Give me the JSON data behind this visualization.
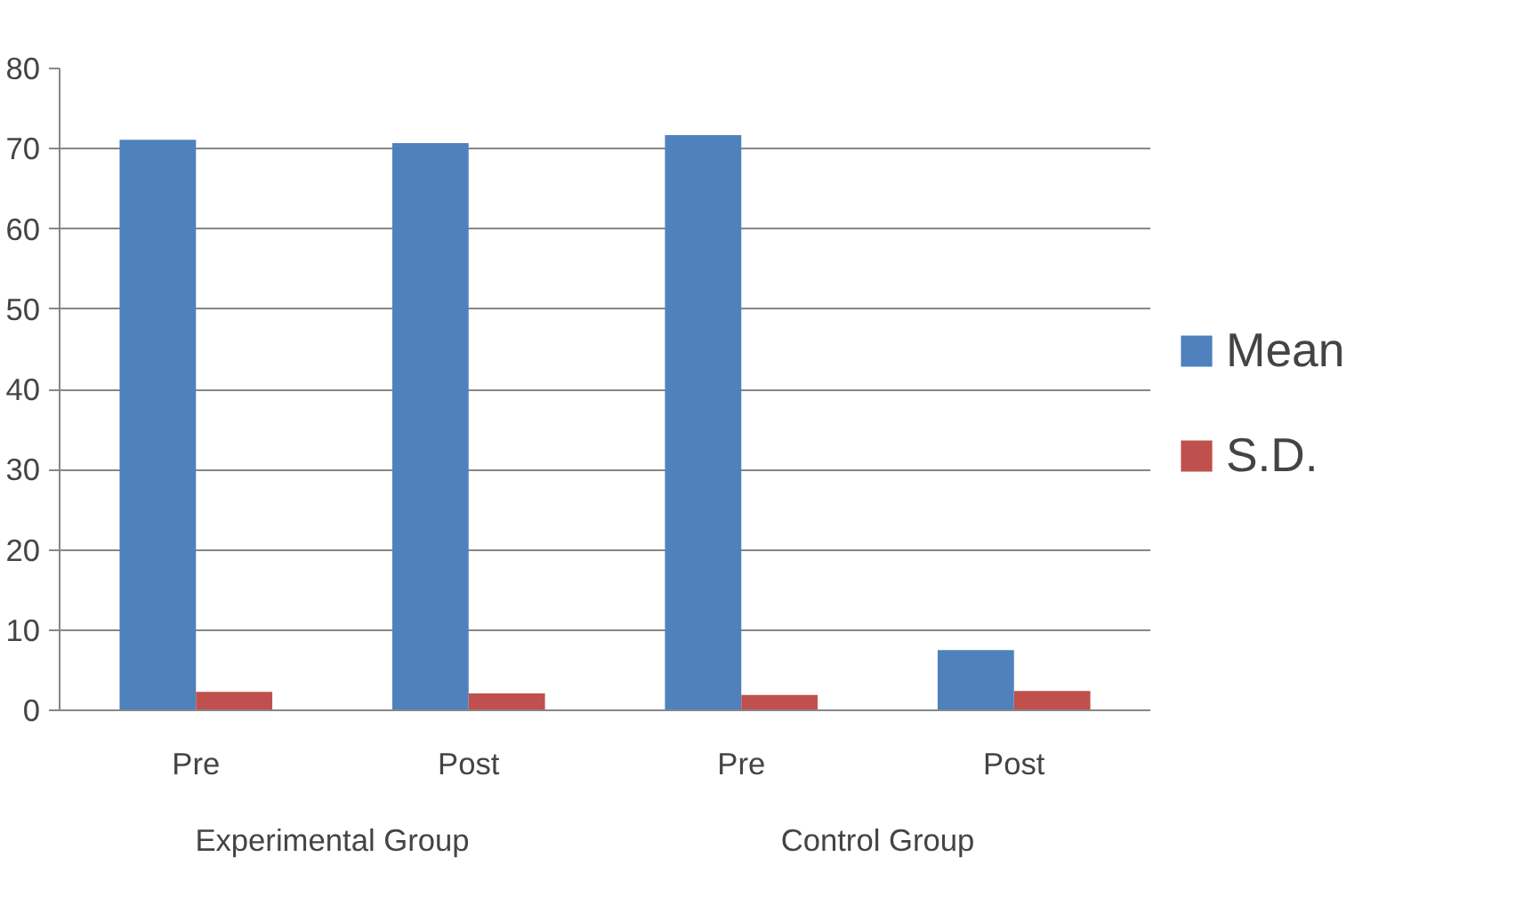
{
  "chart_data": {
    "type": "bar",
    "categories": [
      "Pre",
      "Post",
      "Pre",
      "Post"
    ],
    "series": [
      {
        "name": "Mean",
        "color": "#4f81bd",
        "values": [
          71.1,
          70.7,
          71.7,
          7.5
        ]
      },
      {
        "name": "S.D.",
        "color": "#c0504d",
        "values": [
          2.3,
          2.1,
          1.9,
          2.4
        ]
      }
    ],
    "annotations": [
      "Experimental Group",
      "Control Group"
    ],
    "ylim": [
      0,
      80
    ],
    "yticks": [
      0,
      10,
      20,
      30,
      40,
      50,
      60,
      70,
      80
    ],
    "grid": "y",
    "legend": "right"
  }
}
